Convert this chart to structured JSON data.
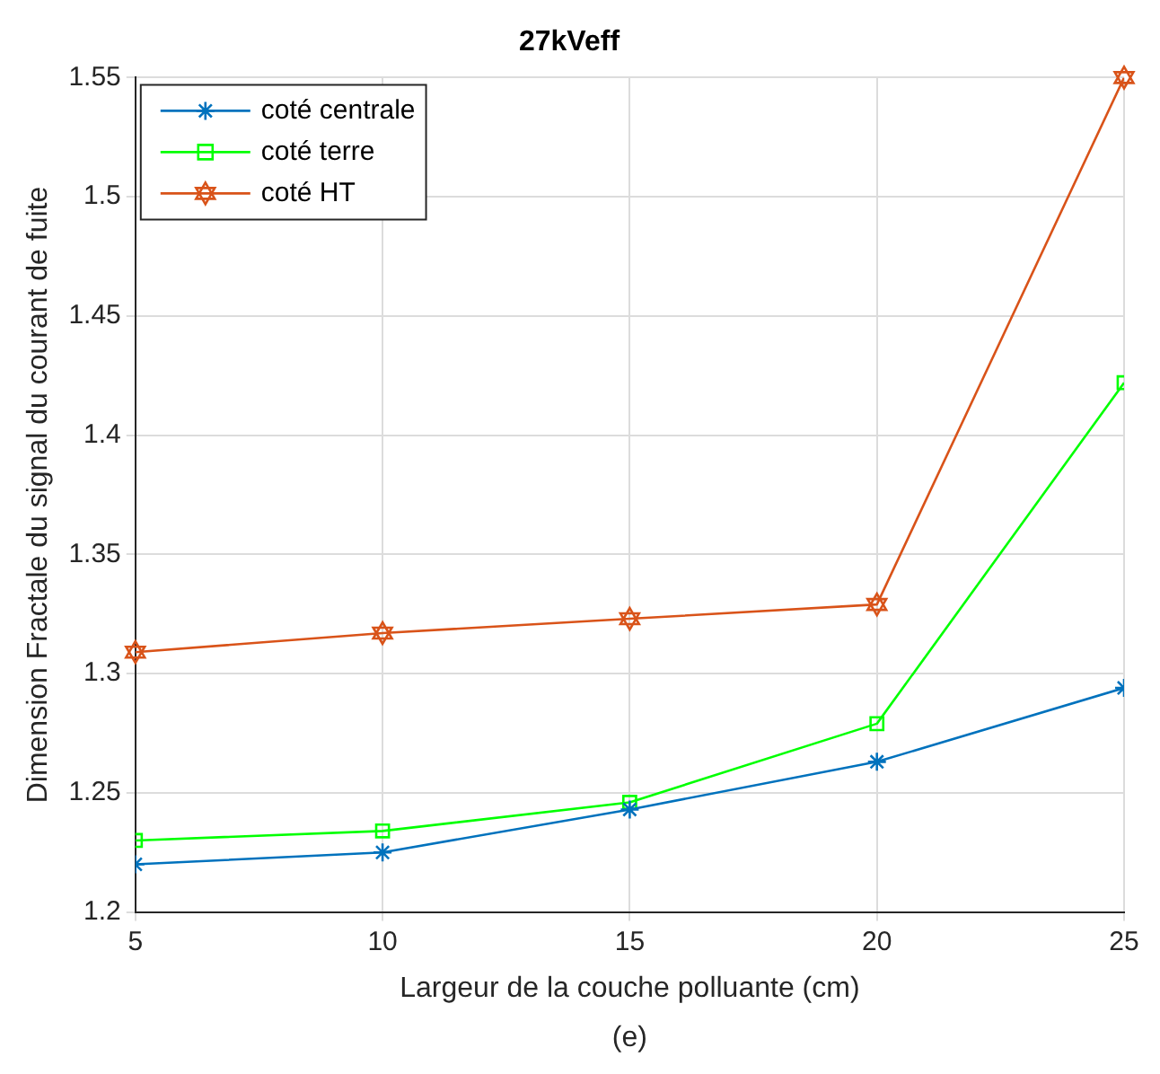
{
  "chart_data": {
    "type": "line",
    "title": "27kVeff",
    "xlabel": "Largeur de la couche polluante (cm)",
    "ylabel": "Dimension Fractale du signal du courant de fuite",
    "annotations": [
      "(e)"
    ],
    "x": [
      5,
      10,
      15,
      20,
      25
    ],
    "xlim": [
      5,
      25
    ],
    "xticks": [
      5,
      10,
      15,
      20,
      25
    ],
    "ylim": [
      1.2,
      1.55
    ],
    "yticks": [
      1.2,
      1.25,
      1.3,
      1.35,
      1.4,
      1.45,
      1.5,
      1.55
    ],
    "grid": true,
    "legend": "top left",
    "line_style": "solid",
    "series": [
      {
        "name": "coté centrale",
        "color": "#0072bd",
        "marker": "cross",
        "values": [
          1.22,
          1.225,
          1.243,
          1.263,
          1.294
        ]
      },
      {
        "name": "coté terre",
        "color": "#00ff00",
        "marker": "square",
        "values": [
          1.23,
          1.234,
          1.246,
          1.279,
          1.422
        ]
      },
      {
        "name": "coté HT",
        "color": "#d95319",
        "marker": "star",
        "values": [
          1.309,
          1.317,
          1.323,
          1.329,
          1.55
        ]
      }
    ]
  }
}
